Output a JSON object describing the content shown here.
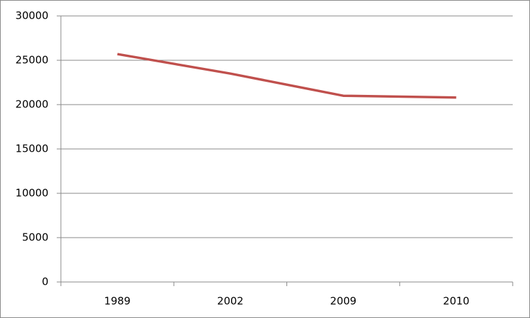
{
  "chart_data": {
    "type": "line",
    "categories": [
      "1989",
      "2002",
      "2009",
      "2010"
    ],
    "series": [
      {
        "color": "#c0504d",
        "values": [
          25700,
          23500,
          21000,
          20800
        ]
      }
    ],
    "ylim": [
      0,
      30000
    ],
    "yticks": [
      0,
      5000,
      10000,
      15000,
      20000,
      25000,
      30000
    ],
    "grid": true
  }
}
